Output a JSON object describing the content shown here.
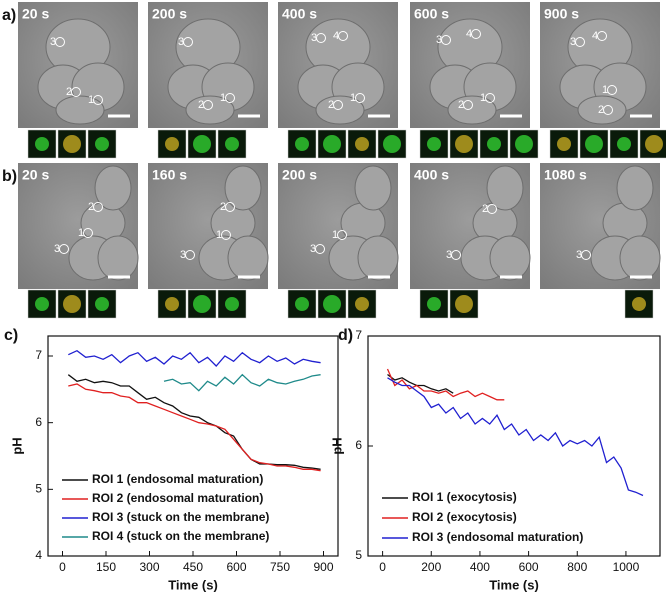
{
  "panels": {
    "a": {
      "label": "a)",
      "images": [
        {
          "time": "20 s",
          "rois": [
            "3",
            "2",
            "1"
          ]
        },
        {
          "time": "200 s",
          "rois": [
            "3",
            "2",
            "1"
          ]
        },
        {
          "time": "400 s",
          "rois": [
            "3",
            "4",
            "2",
            "1"
          ]
        },
        {
          "time": "600 s",
          "rois": [
            "3",
            "4",
            "2",
            "1"
          ]
        },
        {
          "time": "900 s",
          "rois": [
            "3",
            "4",
            "1",
            "2"
          ]
        }
      ]
    },
    "b": {
      "label": "b)",
      "images": [
        {
          "time": "20 s",
          "rois": [
            "2",
            "1",
            "3"
          ]
        },
        {
          "time": "160 s",
          "rois": [
            "2",
            "1",
            "3"
          ]
        },
        {
          "time": "200 s",
          "rois": [
            "1",
            "3"
          ]
        },
        {
          "time": "400 s",
          "rois": [
            "2",
            "3"
          ]
        },
        {
          "time": "1080 s",
          "rois": [
            "3"
          ]
        }
      ]
    }
  },
  "chart_data": [
    {
      "type": "line",
      "panel_label": "c)",
      "xlabel": "Time (s)",
      "ylabel": "pH",
      "xlim": [
        -50,
        950
      ],
      "ylim": [
        4,
        7.3
      ],
      "xticks": [
        0,
        150,
        300,
        450,
        600,
        750,
        900
      ],
      "yticks": [
        4,
        5,
        6,
        7
      ],
      "legend": "lower left",
      "series": [
        {
          "name": "ROI 1 (endosomal maturation)",
          "color": "#111111",
          "x": [
            20,
            50,
            80,
            110,
            140,
            170,
            200,
            230,
            260,
            290,
            320,
            350,
            380,
            410,
            440,
            470,
            500,
            530,
            560,
            590,
            620,
            650,
            680,
            710,
            740,
            770,
            800,
            830,
            860,
            890
          ],
          "values": [
            6.72,
            6.62,
            6.65,
            6.6,
            6.62,
            6.6,
            6.55,
            6.55,
            6.45,
            6.35,
            6.38,
            6.3,
            6.25,
            6.15,
            6.1,
            6.08,
            6.0,
            5.95,
            5.85,
            5.8,
            5.6,
            5.45,
            5.38,
            5.38,
            5.37,
            5.37,
            5.36,
            5.33,
            5.32,
            5.3
          ]
        },
        {
          "name": "ROI 2 (endosomal maturation)",
          "color": "#e02020",
          "x": [
            20,
            50,
            80,
            110,
            140,
            170,
            200,
            230,
            260,
            290,
            320,
            350,
            380,
            410,
            440,
            470,
            500,
            530,
            560,
            590,
            620,
            650,
            680,
            710,
            740,
            770,
            800,
            830,
            860,
            890
          ],
          "values": [
            6.55,
            6.58,
            6.5,
            6.48,
            6.45,
            6.45,
            6.4,
            6.38,
            6.3,
            6.3,
            6.25,
            6.2,
            6.15,
            6.1,
            6.05,
            6.0,
            5.98,
            5.95,
            5.9,
            5.75,
            5.6,
            5.45,
            5.4,
            5.38,
            5.35,
            5.35,
            5.33,
            5.3,
            5.3,
            5.28
          ]
        },
        {
          "name": "ROI 3 (stuck on the membrane)",
          "color": "#2020d0",
          "x": [
            20,
            50,
            80,
            110,
            140,
            170,
            200,
            230,
            260,
            290,
            320,
            350,
            380,
            410,
            440,
            470,
            500,
            530,
            560,
            590,
            620,
            650,
            680,
            710,
            740,
            770,
            800,
            830,
            860,
            890
          ],
          "values": [
            7.02,
            7.08,
            6.98,
            7.0,
            6.95,
            7.02,
            6.9,
            7.0,
            7.05,
            6.92,
            6.98,
            6.88,
            7.0,
            6.95,
            7.05,
            6.9,
            6.98,
            6.85,
            7.0,
            6.92,
            7.05,
            6.95,
            6.9,
            7.0,
            6.92,
            6.97,
            6.88,
            6.95,
            6.92,
            6.9
          ]
        },
        {
          "name": "ROI 4 (stuck on the membrane)",
          "color": "#1f8a8a",
          "x": [
            350,
            380,
            410,
            440,
            470,
            500,
            530,
            560,
            590,
            620,
            650,
            680,
            710,
            740,
            770,
            800,
            830,
            860,
            890
          ],
          "values": [
            6.62,
            6.65,
            6.58,
            6.6,
            6.48,
            6.62,
            6.55,
            6.68,
            6.58,
            6.72,
            6.6,
            6.55,
            6.65,
            6.6,
            6.58,
            6.62,
            6.65,
            6.7,
            6.72
          ]
        }
      ]
    },
    {
      "type": "line",
      "panel_label": "d)",
      "xlabel": "Time (s)",
      "ylabel": "pH",
      "xlim": [
        -60,
        1140
      ],
      "ylim": [
        5,
        7
      ],
      "xticks": [
        0,
        200,
        400,
        600,
        800,
        1000
      ],
      "yticks": [
        5,
        6,
        7
      ],
      "legend": "lower left",
      "series": [
        {
          "name": "ROI 1 (exocytosis)",
          "color": "#111111",
          "x": [
            20,
            50,
            80,
            110,
            140,
            170,
            200,
            230,
            260,
            290
          ],
          "values": [
            6.65,
            6.6,
            6.62,
            6.58,
            6.55,
            6.55,
            6.52,
            6.5,
            6.52,
            6.48
          ]
        },
        {
          "name": "ROI 2 (exocytosis)",
          "color": "#e02020",
          "x": [
            20,
            50,
            80,
            110,
            140,
            170,
            200,
            230,
            260,
            290,
            320,
            350,
            380,
            410,
            440,
            470,
            500
          ],
          "values": [
            6.7,
            6.55,
            6.6,
            6.52,
            6.55,
            6.5,
            6.5,
            6.48,
            6.5,
            6.45,
            6.48,
            6.5,
            6.45,
            6.48,
            6.45,
            6.42,
            6.42
          ]
        },
        {
          "name": "ROI 3 (endosomal maturation)",
          "color": "#2020d0",
          "x": [
            20,
            50,
            80,
            110,
            140,
            170,
            200,
            230,
            260,
            290,
            320,
            350,
            380,
            410,
            440,
            470,
            500,
            530,
            560,
            590,
            620,
            650,
            680,
            710,
            740,
            770,
            800,
            830,
            860,
            890,
            920,
            950,
            980,
            1010,
            1040,
            1070
          ],
          "values": [
            6.62,
            6.58,
            6.55,
            6.55,
            6.5,
            6.45,
            6.35,
            6.38,
            6.3,
            6.35,
            6.25,
            6.3,
            6.2,
            6.25,
            6.2,
            6.28,
            6.15,
            6.2,
            6.1,
            6.15,
            6.05,
            6.1,
            6.05,
            6.12,
            6.0,
            6.05,
            6.02,
            6.05,
            6.0,
            6.08,
            5.85,
            5.9,
            5.8,
            5.6,
            5.58,
            5.55
          ]
        }
      ]
    }
  ]
}
